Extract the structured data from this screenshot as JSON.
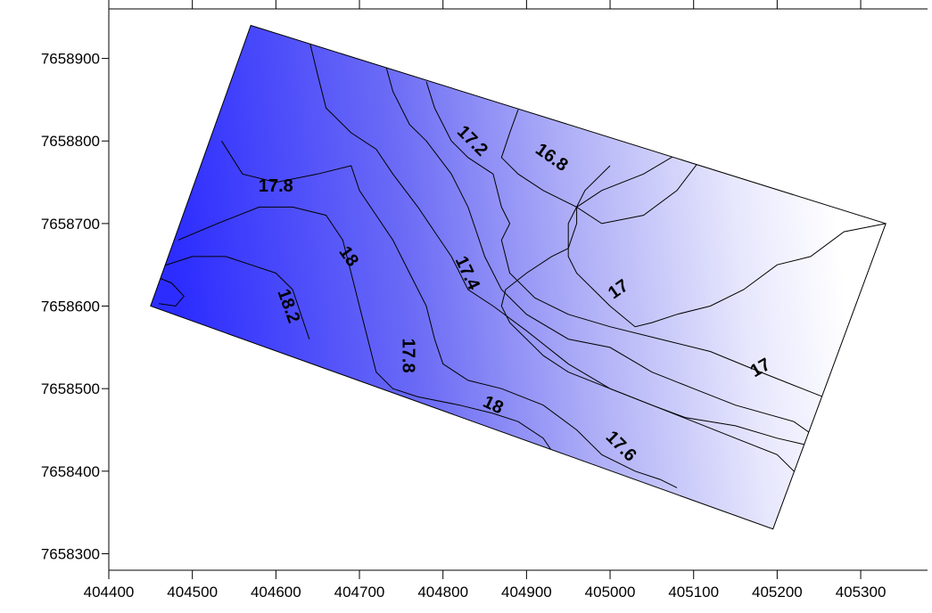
{
  "chart_data": {
    "type": "contour",
    "title": "",
    "xlabel": "",
    "ylabel": "",
    "xlim": [
      404400,
      405380
    ],
    "ylim": [
      7658280,
      7658960
    ],
    "x_ticks": [
      404400,
      404500,
      404600,
      404700,
      404800,
      404900,
      405000,
      405100,
      405200,
      405300
    ],
    "x_tick_labels": [
      "404400",
      "404500",
      "404600",
      "404700",
      "404800",
      "404900",
      "405000",
      "405100",
      "405200",
      "405300"
    ],
    "y_ticks": [
      7658300,
      7658400,
      7658500,
      7658600,
      7658700,
      7658800,
      7658900
    ],
    "y_tick_labels": [
      "7658300",
      "7658400",
      "7658500",
      "7658600",
      "7658700",
      "7658800",
      "7658900"
    ],
    "grid": false,
    "colorscale": {
      "low_value": 16.8,
      "low_color": "#ffffff",
      "high_value": 18.3,
      "high_color": "#2c2cff"
    },
    "contour_levels": [
      16.8,
      17.0,
      17.2,
      17.4,
      17.6,
      17.8,
      18.0,
      18.2
    ],
    "domain_corners": [
      {
        "x": 404570,
        "y": 7658940
      },
      {
        "x": 405330,
        "y": 7658700
      },
      {
        "x": 405195,
        "y": 7658330
      },
      {
        "x": 404450,
        "y": 7658600
      }
    ],
    "contours": [
      {
        "level": 17.0,
        "points": [
          [
            405242,
            7658430
          ],
          [
            405200,
            7658440
          ],
          [
            405150,
            7658455
          ],
          [
            405090,
            7658465
          ],
          [
            405050,
            7658480
          ],
          [
            405000,
            7658500
          ],
          [
            404950,
            7658520
          ],
          [
            404920,
            7658540
          ],
          [
            404900,
            7658560
          ],
          [
            404880,
            7658580
          ],
          [
            404870,
            7658600
          ],
          [
            404875,
            7658620
          ],
          [
            404900,
            7658640
          ],
          [
            404930,
            7658660
          ],
          [
            404950,
            7658670
          ],
          [
            404960,
            7658700
          ],
          [
            404960,
            7658720
          ],
          [
            404990,
            7658740
          ],
          [
            405040,
            7658760
          ],
          [
            405090,
            7658790
          ]
        ]
      },
      {
        "level": 17.0,
        "points": [
          [
            405330,
            7658700
          ],
          [
            405280,
            7658690
          ],
          [
            405240,
            7658660
          ],
          [
            405200,
            7658650
          ],
          [
            405160,
            7658620
          ],
          [
            405120,
            7658600
          ],
          [
            405080,
            7658590
          ],
          [
            405050,
            7658580
          ],
          [
            405030,
            7658575
          ],
          [
            405000,
            7658600
          ],
          [
            404980,
            7658620
          ],
          [
            404960,
            7658640
          ],
          [
            404950,
            7658660
          ],
          [
            404950,
            7658700
          ],
          [
            404970,
            7658740
          ],
          [
            405000,
            7658770
          ]
        ]
      },
      {
        "level": 16.8,
        "points": [
          [
            404890,
            7658838
          ],
          [
            404880,
            7658810
          ],
          [
            404870,
            7658780
          ],
          [
            404890,
            7658760
          ],
          [
            404920,
            7658740
          ],
          [
            404960,
            7658720
          ],
          [
            404990,
            7658700
          ],
          [
            405040,
            7658710
          ],
          [
            405080,
            7658740
          ],
          [
            405110,
            7658780
          ],
          [
            405130,
            7658800
          ]
        ]
      },
      {
        "level": 17.2,
        "points": [
          [
            404780,
            7658872
          ],
          [
            404790,
            7658840
          ],
          [
            404810,
            7658800
          ],
          [
            404830,
            7658780
          ],
          [
            404860,
            7658760
          ],
          [
            404870,
            7658720
          ],
          [
            404880,
            7658700
          ],
          [
            404870,
            7658680
          ],
          [
            404880,
            7658640
          ],
          [
            404910,
            7658610
          ],
          [
            404950,
            7658590
          ],
          [
            405000,
            7658575
          ],
          [
            405060,
            7658560
          ],
          [
            405120,
            7658545
          ],
          [
            405180,
            7658520
          ],
          [
            405230,
            7658500
          ],
          [
            405280,
            7658480
          ]
        ]
      },
      {
        "level": 17.4,
        "points": [
          [
            404730,
            7658897
          ],
          [
            404740,
            7658860
          ],
          [
            404760,
            7658820
          ],
          [
            404780,
            7658800
          ],
          [
            404810,
            7658760
          ],
          [
            404830,
            7658720
          ],
          [
            404840,
            7658690
          ],
          [
            404850,
            7658660
          ],
          [
            404870,
            7658620
          ],
          [
            404900,
            7658590
          ],
          [
            404950,
            7658560
          ],
          [
            405000,
            7658550
          ],
          [
            405050,
            7658520
          ],
          [
            405100,
            7658500
          ],
          [
            405150,
            7658480
          ],
          [
            405220,
            7658460
          ],
          [
            405262,
            7658430
          ]
        ]
      },
      {
        "level": 17.6,
        "points": [
          [
            404640,
            7658922
          ],
          [
            404650,
            7658880
          ],
          [
            404660,
            7658840
          ],
          [
            404690,
            7658810
          ],
          [
            404720,
            7658790
          ],
          [
            404740,
            7658760
          ],
          [
            404770,
            7658720
          ],
          [
            404790,
            7658690
          ],
          [
            404810,
            7658660
          ],
          [
            404830,
            7658620
          ],
          [
            404860,
            7658600
          ],
          [
            404900,
            7658570
          ],
          [
            404950,
            7658530
          ],
          [
            405000,
            7658500
          ],
          [
            405050,
            7658480
          ],
          [
            405100,
            7658460
          ],
          [
            405150,
            7658440
          ],
          [
            405200,
            7658420
          ],
          [
            405240,
            7658380
          ]
        ]
      },
      {
        "level": 17.8,
        "points": [
          [
            404535,
            7658800
          ],
          [
            404560,
            7658760
          ],
          [
            404600,
            7658750
          ],
          [
            404650,
            7658760
          ],
          [
            404690,
            7658770
          ],
          [
            404700,
            7658740
          ],
          [
            404720,
            7658710
          ],
          [
            404740,
            7658680
          ],
          [
            404760,
            7658640
          ],
          [
            404780,
            7658600
          ],
          [
            404790,
            7658560
          ],
          [
            404800,
            7658530
          ],
          [
            404830,
            7658510
          ],
          [
            404870,
            7658500
          ],
          [
            404920,
            7658480
          ],
          [
            404960,
            7658450
          ],
          [
            404990,
            7658420
          ],
          [
            405030,
            7658400
          ],
          [
            405060,
            7658390
          ],
          [
            405080,
            7658380
          ]
        ]
      },
      {
        "level": 18.0,
        "points": [
          [
            404483,
            7658680
          ],
          [
            404530,
            7658700
          ],
          [
            404580,
            7658720
          ],
          [
            404620,
            7658720
          ],
          [
            404660,
            7658710
          ],
          [
            404680,
            7658680
          ],
          [
            404690,
            7658640
          ],
          [
            404700,
            7658600
          ],
          [
            404710,
            7658560
          ],
          [
            404720,
            7658520
          ],
          [
            404740,
            7658500
          ],
          [
            404770,
            7658490
          ],
          [
            404820,
            7658480
          ],
          [
            404860,
            7658470
          ],
          [
            404890,
            7658460
          ],
          [
            404920,
            7658440
          ],
          [
            404940,
            7658410
          ]
        ]
      },
      {
        "level": 18.2,
        "points": [
          [
            404463,
            7658648
          ],
          [
            404500,
            7658660
          ],
          [
            404540,
            7658660
          ],
          [
            404570,
            7658650
          ],
          [
            404600,
            7658640
          ],
          [
            404620,
            7658620
          ],
          [
            404630,
            7658590
          ],
          [
            404640,
            7658560
          ]
        ]
      },
      {
        "level": 18.2,
        "points": [
          [
            404458,
            7658635
          ],
          [
            404475,
            7658628
          ],
          [
            404490,
            7658612
          ],
          [
            404480,
            7658600
          ],
          [
            404460,
            7658603
          ]
        ]
      }
    ],
    "contour_labels": [
      {
        "text": "16.8",
        "x": 404930,
        "y": 7658780,
        "angle": 35
      },
      {
        "text": "17.2",
        "x": 404835,
        "y": 7658800,
        "angle": 45
      },
      {
        "text": "17.8",
        "x": 404600,
        "y": 7658745,
        "angle": 0
      },
      {
        "text": "18",
        "x": 404687,
        "y": 7658660,
        "angle": 55
      },
      {
        "text": "18.2",
        "x": 404615,
        "y": 7658600,
        "angle": 70
      },
      {
        "text": "17.4",
        "x": 404829,
        "y": 7658640,
        "angle": 65
      },
      {
        "text": "17",
        "x": 405010,
        "y": 7658620,
        "angle": -35
      },
      {
        "text": "17.8",
        "x": 404758,
        "y": 7658540,
        "angle": 90
      },
      {
        "text": "18",
        "x": 404860,
        "y": 7658480,
        "angle": 25
      },
      {
        "text": "17.6",
        "x": 405013,
        "y": 7658430,
        "angle": 45
      },
      {
        "text": "17",
        "x": 405180,
        "y": 7658525,
        "angle": -30
      }
    ],
    "contour_line_color": "#000000",
    "frame_color": "#000000"
  }
}
